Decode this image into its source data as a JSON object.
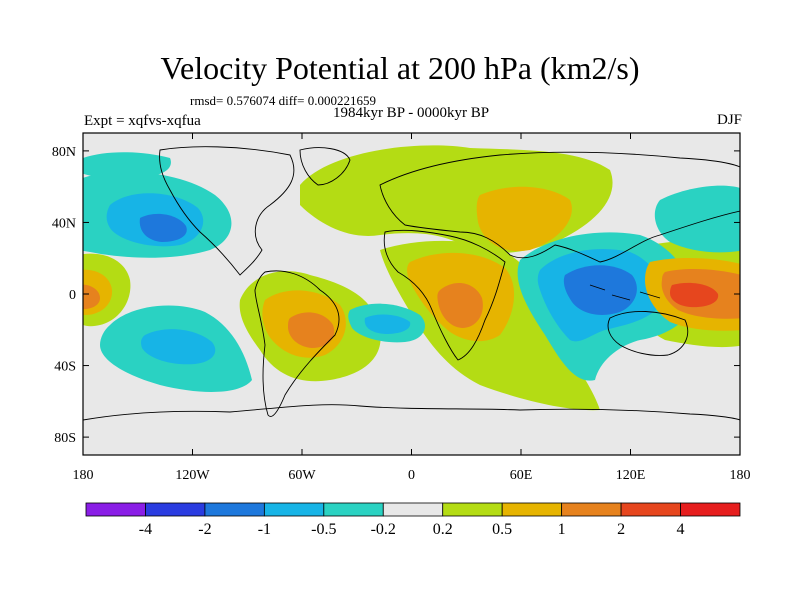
{
  "title": "Velocity Potential at 200 hPa (km2/s)",
  "stats": "rmsd= 0.576074 diff= 0.000221659",
  "experiment": "Expt = xqfvs-xqfua",
  "period": "1984kyr BP - 0000kyr BP",
  "season": "DJF",
  "map": {
    "lat_ticks": [
      "80N",
      "40N",
      "0",
      "40S",
      "80S"
    ],
    "lon_ticks": [
      "180",
      "120W",
      "60W",
      "0",
      "60E",
      "120E",
      "180"
    ]
  },
  "colorbar": {
    "labels": [
      "-4",
      "-2",
      "-1",
      "-0.5",
      "-0.2",
      "0.2",
      "0.5",
      "1",
      "2",
      "4"
    ],
    "colors": [
      "#8a1ee6",
      "#2a3ce0",
      "#1e78dc",
      "#17b4e6",
      "#2ad2c2",
      "#e8e8e8",
      "#b4dc14",
      "#e6b400",
      "#e6821e",
      "#e6461e",
      "#e61e1e"
    ]
  },
  "palette": {
    "neutral": "#e8e8e8",
    "pos1": "#b4dc14",
    "pos2": "#e6b400",
    "pos3": "#e6821e",
    "pos4": "#e6461e",
    "neg1": "#2ad2c2",
    "neg2": "#17b4e6",
    "neg3": "#1e78dc"
  }
}
